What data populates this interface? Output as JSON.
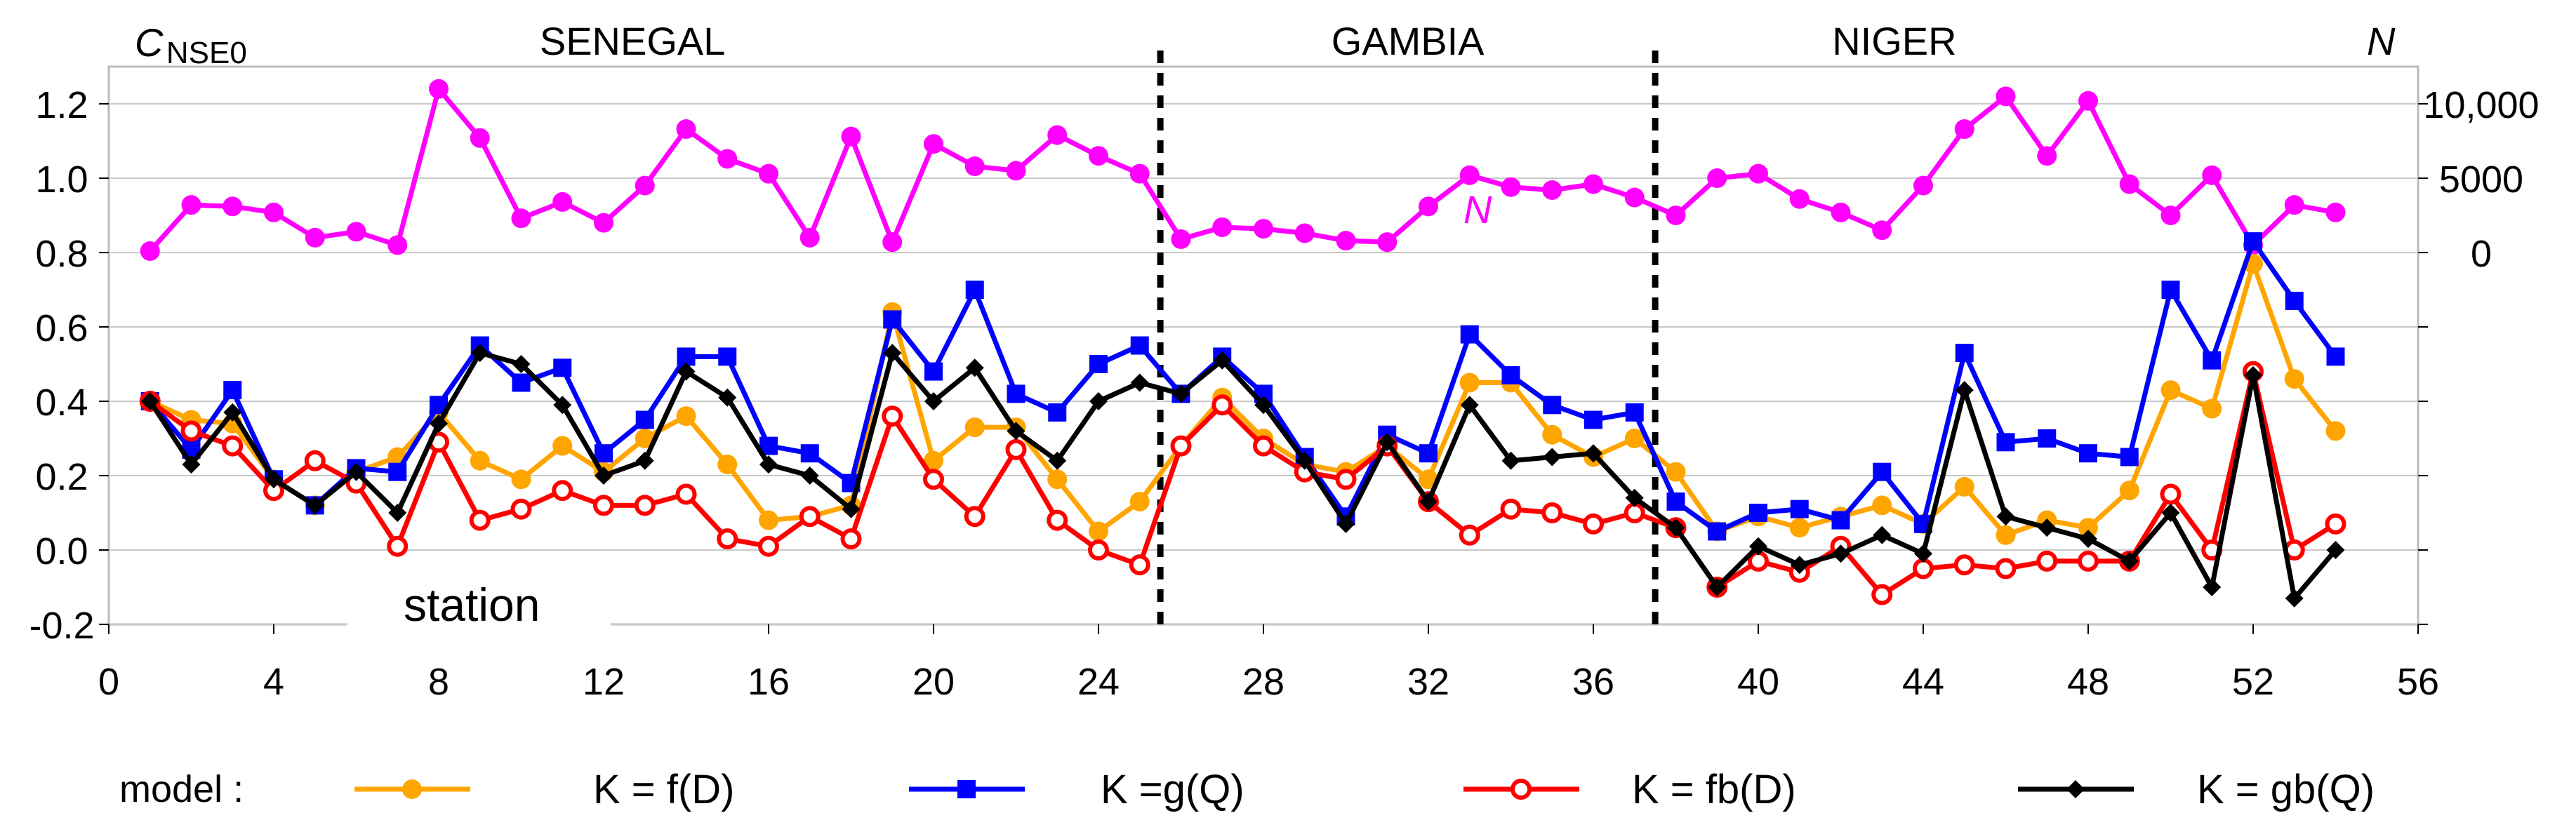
{
  "chart_data": {
    "type": "line",
    "xlabel": "station",
    "ylabel": "C NSE0",
    "ylabel_main": "C",
    "ylabel_sub": "NSE0",
    "y2label": "N",
    "xlim": [
      0,
      56
    ],
    "ylim": [
      -0.2,
      1.3
    ],
    "xticks": [
      0,
      4,
      8,
      12,
      16,
      20,
      24,
      28,
      32,
      36,
      40,
      44,
      48,
      52,
      56
    ],
    "yticks": [
      -0.2,
      0.0,
      0.2,
      0.4,
      0.6,
      0.8,
      1.0,
      1.2
    ],
    "ytick_labels": [
      "-0.2",
      "0.0",
      "0.2",
      "0.4",
      "0.6",
      "0.8",
      "1.0",
      "1.2"
    ],
    "y2_ticks": [
      0,
      5000,
      10000
    ],
    "y2_tick_labels": [
      "0",
      "5000",
      "10,000"
    ],
    "regions": [
      {
        "name": "SENEGAL",
        "x_center": 12.7
      },
      {
        "name": "GAMBIA",
        "x_center": 31.5
      },
      {
        "name": "NIGER",
        "x_center": 43.3
      }
    ],
    "dividers": [
      25.5,
      37.5
    ],
    "legend_prefix": "model :",
    "legend_placement": "bottom",
    "n_series_label": "N",
    "x": [
      1,
      2,
      3,
      4,
      5,
      6,
      7,
      8,
      9,
      10,
      11,
      12,
      13,
      14,
      15,
      16,
      17,
      18,
      19,
      20,
      21,
      22,
      23,
      24,
      25,
      26,
      27,
      28,
      29,
      30,
      31,
      32,
      33,
      34,
      35,
      36,
      37,
      38,
      39,
      40,
      41,
      42,
      43,
      44,
      45,
      46,
      47,
      48,
      49,
      50,
      51,
      52,
      53,
      54
    ],
    "series": [
      {
        "name": "N",
        "axis": "right",
        "color": "#ff00ff",
        "marker": "dot",
        "values": [
          100,
          3200,
          3100,
          2700,
          1000,
          1400,
          500,
          11000,
          7700,
          2300,
          3400,
          2000,
          4500,
          8300,
          6300,
          5300,
          1000,
          7800,
          700,
          7300,
          5800,
          5500,
          7900,
          6500,
          5300,
          900,
          1700,
          1600,
          1300,
          800,
          700,
          3100,
          5200,
          4400,
          4200,
          4600,
          3700,
          2500,
          5000,
          5300,
          3600,
          2700,
          1500,
          4500,
          8300,
          10500,
          6500,
          10200,
          4600,
          2500,
          5200,
          500,
          3200,
          2700
        ]
      },
      {
        "name": "K = f(D)",
        "legend_label": "K = f(D)",
        "axis": "left",
        "color": "#ffa500",
        "marker": "dot",
        "values": [
          0.4,
          0.35,
          0.34,
          0.19,
          0.12,
          0.21,
          0.25,
          0.37,
          0.24,
          0.19,
          0.28,
          0.21,
          0.3,
          0.36,
          0.23,
          0.08,
          0.09,
          0.12,
          0.64,
          0.24,
          0.33,
          0.33,
          0.19,
          0.05,
          0.13,
          0.28,
          0.41,
          0.3,
          0.23,
          0.21,
          0.28,
          0.19,
          0.45,
          0.45,
          0.31,
          0.25,
          0.3,
          0.21,
          0.05,
          0.09,
          0.06,
          0.09,
          0.12,
          0.07,
          0.17,
          0.04,
          0.08,
          0.06,
          0.16,
          0.43,
          0.38,
          0.77,
          0.46,
          0.32
        ]
      },
      {
        "name": "K = g(Q)",
        "legend_label": "K =g(Q)",
        "axis": "left",
        "color": "#0000ff",
        "marker": "square",
        "values": [
          0.4,
          0.27,
          0.43,
          0.19,
          0.12,
          0.22,
          0.21,
          0.39,
          0.55,
          0.45,
          0.49,
          0.26,
          0.35,
          0.52,
          0.52,
          0.28,
          0.26,
          0.18,
          0.62,
          0.48,
          0.7,
          0.42,
          0.37,
          0.5,
          0.55,
          0.42,
          0.52,
          0.42,
          0.25,
          0.09,
          0.31,
          0.26,
          0.58,
          0.47,
          0.39,
          0.35,
          0.37,
          0.13,
          0.05,
          0.1,
          0.11,
          0.08,
          0.21,
          0.07,
          0.53,
          0.29,
          0.3,
          0.26,
          0.25,
          0.7,
          0.51,
          0.83,
          0.67,
          0.52
        ]
      },
      {
        "name": "K = fb(D)",
        "legend_label": "K = fb(D)",
        "axis": "left",
        "color": "#ff0000",
        "marker": "ring",
        "values": [
          0.4,
          0.32,
          0.28,
          0.16,
          0.24,
          0.18,
          0.01,
          0.29,
          0.08,
          0.11,
          0.16,
          0.12,
          0.12,
          0.15,
          0.03,
          0.01,
          0.09,
          0.03,
          0.36,
          0.19,
          0.09,
          0.27,
          0.08,
          0.0,
          -0.04,
          0.28,
          0.39,
          0.28,
          0.21,
          0.19,
          0.28,
          0.13,
          0.04,
          0.11,
          0.1,
          0.07,
          0.1,
          0.06,
          -0.1,
          -0.03,
          -0.06,
          0.01,
          -0.12,
          -0.05,
          -0.04,
          -0.05,
          -0.03,
          -0.03,
          -0.03,
          0.15,
          0.0,
          0.48,
          0.0,
          0.07
        ]
      },
      {
        "name": "K = gb(Q)",
        "legend_label": "K = gb(Q)",
        "axis": "left",
        "color": "#000000",
        "marker": "diamond",
        "values": [
          0.4,
          0.23,
          0.37,
          0.19,
          0.12,
          0.21,
          0.1,
          0.34,
          0.53,
          0.5,
          0.39,
          0.2,
          0.24,
          0.48,
          0.41,
          0.23,
          0.2,
          0.11,
          0.53,
          0.4,
          0.49,
          0.32,
          0.24,
          0.4,
          0.45,
          0.42,
          0.51,
          0.39,
          0.24,
          0.07,
          0.29,
          0.13,
          0.39,
          0.24,
          0.25,
          0.26,
          0.14,
          0.06,
          -0.1,
          0.01,
          -0.04,
          -0.01,
          0.04,
          -0.01,
          0.43,
          0.09,
          0.06,
          0.03,
          -0.03,
          0.1,
          -0.1,
          0.47,
          -0.13,
          0.0
        ]
      }
    ]
  }
}
